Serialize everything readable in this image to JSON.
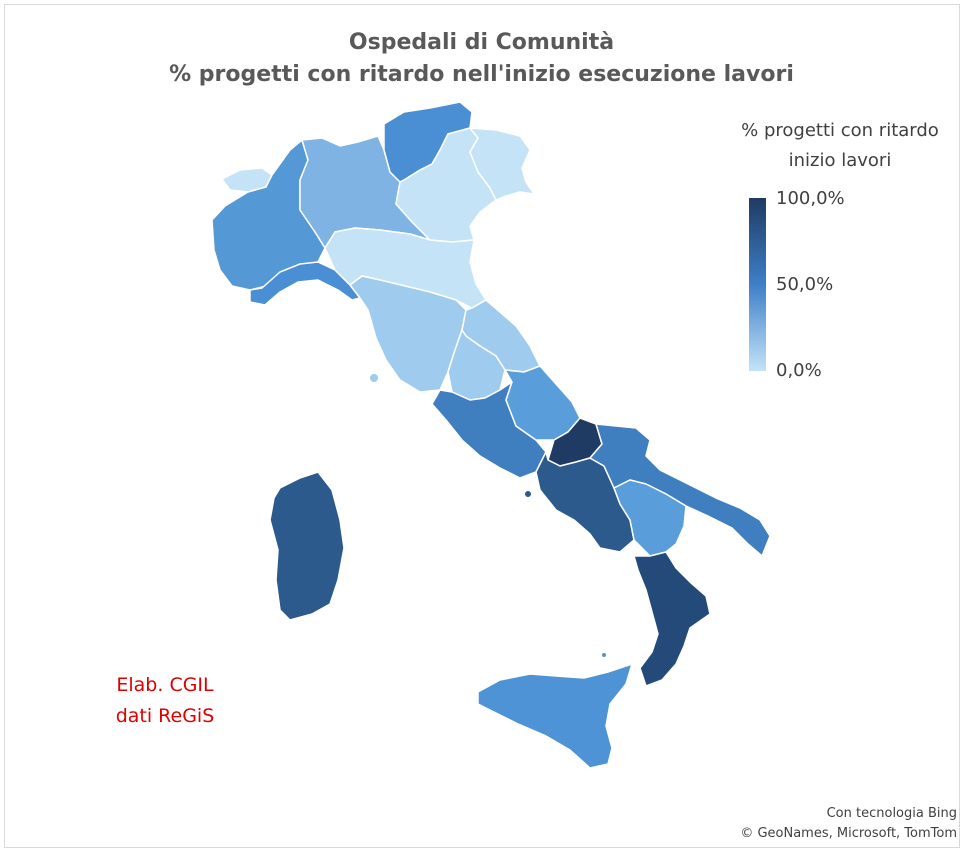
{
  "title": {
    "line1": "Ospedali di Comunità",
    "line2": "% progetti con ritardo nell'inizio esecuzione lavori"
  },
  "legend": {
    "title_line1": "% progetti con ritardo",
    "title_line2": "inizio lavori",
    "max_label": "100,0%",
    "mid_label": "50,0%",
    "min_label": "0,0%",
    "colors": {
      "low": "#c4e3f7",
      "mid": "#3f7fc8",
      "high": "#1f3b63"
    }
  },
  "note": {
    "line1": "Elab. CGIL",
    "line2": "dati ReGiS"
  },
  "credits": {
    "line1": "Con tecnologia Bing",
    "line2": "© GeoNames, Microsoft, TomTom"
  },
  "map": {
    "border_color": "#ffffff",
    "regions": [
      {
        "name": "Valle d'Aosta",
        "color": "#c4e3f7"
      },
      {
        "name": "Piemonte",
        "color": "#5598d6"
      },
      {
        "name": "Liguria",
        "color": "#4a8fd3"
      },
      {
        "name": "Lombardia",
        "color": "#7eb3e3"
      },
      {
        "name": "Trentino-Alto Adige",
        "color": "#4a8fd3"
      },
      {
        "name": "Veneto",
        "color": "#c4e3f7"
      },
      {
        "name": "Friuli-Venezia Giulia",
        "color": "#c4e3f7"
      },
      {
        "name": "Emilia-Romagna",
        "color": "#c4e3f7"
      },
      {
        "name": "Toscana",
        "color": "#9fccee"
      },
      {
        "name": "Marche",
        "color": "#9fccee"
      },
      {
        "name": "Umbria",
        "color": "#9fccee"
      },
      {
        "name": "Lazio",
        "color": "#3f7fc0"
      },
      {
        "name": "Abruzzo",
        "color": "#5a9ddb"
      },
      {
        "name": "Molise",
        "color": "#1f3b63"
      },
      {
        "name": "Campania",
        "color": "#2d5a8c"
      },
      {
        "name": "Puglia",
        "color": "#3f7fc0"
      },
      {
        "name": "Basilicata",
        "color": "#5a9ddb"
      },
      {
        "name": "Calabria",
        "color": "#234a78"
      },
      {
        "name": "Sicilia",
        "color": "#4d93d5"
      },
      {
        "name": "Sardegna",
        "color": "#2d5a8c"
      }
    ]
  }
}
